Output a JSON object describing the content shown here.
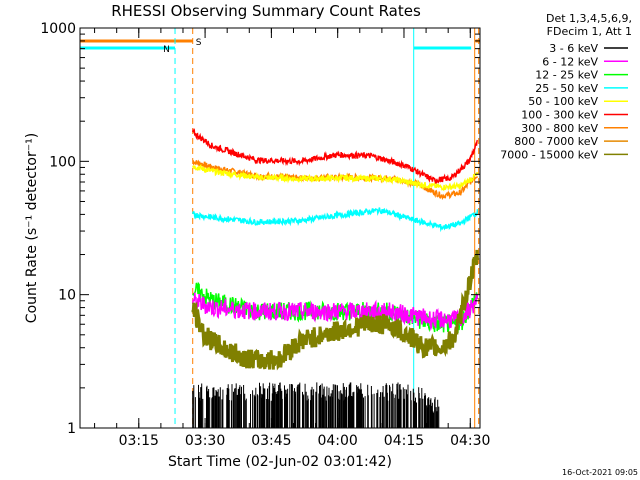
{
  "chart_data": {
    "type": "line",
    "title": "RHESSI Observing Summary Count Rates",
    "xlabel": "Start Time (02-Jun-02 03:01:42)",
    "ylabel": "Count Rate (s⁻¹ detector⁻¹)",
    "yscale": "log",
    "ylim": [
      1,
      1000
    ],
    "xlim_minutes_after_start": [
      0,
      49
    ],
    "x_units": "minutes after 03:01:42",
    "x_ticks": [
      {
        "label": "03:15",
        "t": 13.3
      },
      {
        "label": "03:30",
        "t": 28.3
      },
      {
        "label": "03:45",
        "t": 43.3
      },
      {
        "label": "04:00",
        "t": 58.3
      },
      {
        "label": "04:15",
        "t": 73.3
      },
      {
        "label": "04:30",
        "t": 88.3
      }
    ],
    "y_ticks": [
      {
        "label": "1",
        "v": 1
      },
      {
        "label": "10",
        "v": 10
      },
      {
        "label": "100",
        "v": 100
      },
      {
        "label": "1000",
        "v": 1000
      }
    ],
    "legend_header": [
      "Det 1,3,4,5,6,9,",
      "FDecim 1, Att 1"
    ],
    "timestamp": "16-Oct-2021 09:05",
    "grid": false,
    "legend_position": "right",
    "series": [
      {
        "name": "3 - 6 keV",
        "color": "#000000",
        "t": [
          25.5,
          35,
          45,
          55,
          65,
          75,
          82
        ],
        "values": [
          2,
          2,
          2,
          2,
          2,
          2,
          1.5
        ]
      },
      {
        "name": "6 - 12 keV",
        "color": "#ff00ff",
        "t": [
          25.5,
          30,
          40,
          50,
          60,
          70,
          80,
          86,
          90
        ],
        "values": [
          9,
          8,
          7.5,
          7.5,
          7.5,
          7.5,
          6.5,
          6.5,
          9
        ]
      },
      {
        "name": "12 - 25 keV",
        "color": "#00ff00",
        "t": [
          25.5,
          30,
          40,
          50,
          60,
          70,
          80,
          86,
          90
        ],
        "values": [
          11,
          9,
          7.5,
          7.5,
          7.5,
          7.5,
          6,
          6,
          10
        ]
      },
      {
        "name": "25 - 50 keV",
        "color": "#00ffff",
        "t": [
          25.5,
          30,
          40,
          50,
          60,
          68,
          76,
          82,
          86,
          90
        ],
        "values": [
          40,
          38,
          35,
          36,
          40,
          43,
          36,
          32,
          34,
          42
        ]
      },
      {
        "name": "50 - 100 keV",
        "color": "#ffff00",
        "t": [
          25.5,
          30,
          40,
          50,
          60,
          70,
          76,
          82,
          86,
          90
        ],
        "values": [
          92,
          84,
          76,
          74,
          75,
          74,
          68,
          64,
          65,
          80
        ]
      },
      {
        "name": "100 - 300 keV",
        "color": "#ff0000",
        "t": [
          25.5,
          30,
          40,
          50,
          58,
          66,
          74,
          80,
          84,
          88,
          90
        ],
        "values": [
          165,
          130,
          102,
          100,
          112,
          110,
          92,
          72,
          75,
          100,
          140
        ]
      },
      {
        "name": "300 - 800 keV",
        "color": "#ff8000",
        "t": [
          25.5,
          30,
          40,
          50,
          60,
          70,
          76,
          82,
          86,
          90
        ],
        "values": [
          100,
          90,
          78,
          75,
          76,
          75,
          68,
          55,
          58,
          80
        ]
      },
      {
        "name": "800 - 7000 keV",
        "color": "#e68a00",
        "values": []
      },
      {
        "name": "7000 - 15000 keV",
        "color": "#808000",
        "t": [
          25.5,
          28,
          32,
          36,
          40,
          45,
          50,
          55,
          60,
          65,
          70,
          74,
          78,
          82,
          85,
          88,
          90
        ],
        "values": [
          8,
          5,
          4,
          3.5,
          3.2,
          3.3,
          4.5,
          5,
          5.5,
          6,
          6,
          5,
          4,
          4,
          5,
          12,
          20
        ]
      }
    ],
    "annotations": [
      {
        "label": "S",
        "color": "#ff8000",
        "note": "orange attenuator-state marker"
      },
      {
        "label": "N",
        "color": "#00ffff",
        "note": "cyan night marker"
      }
    ]
  }
}
